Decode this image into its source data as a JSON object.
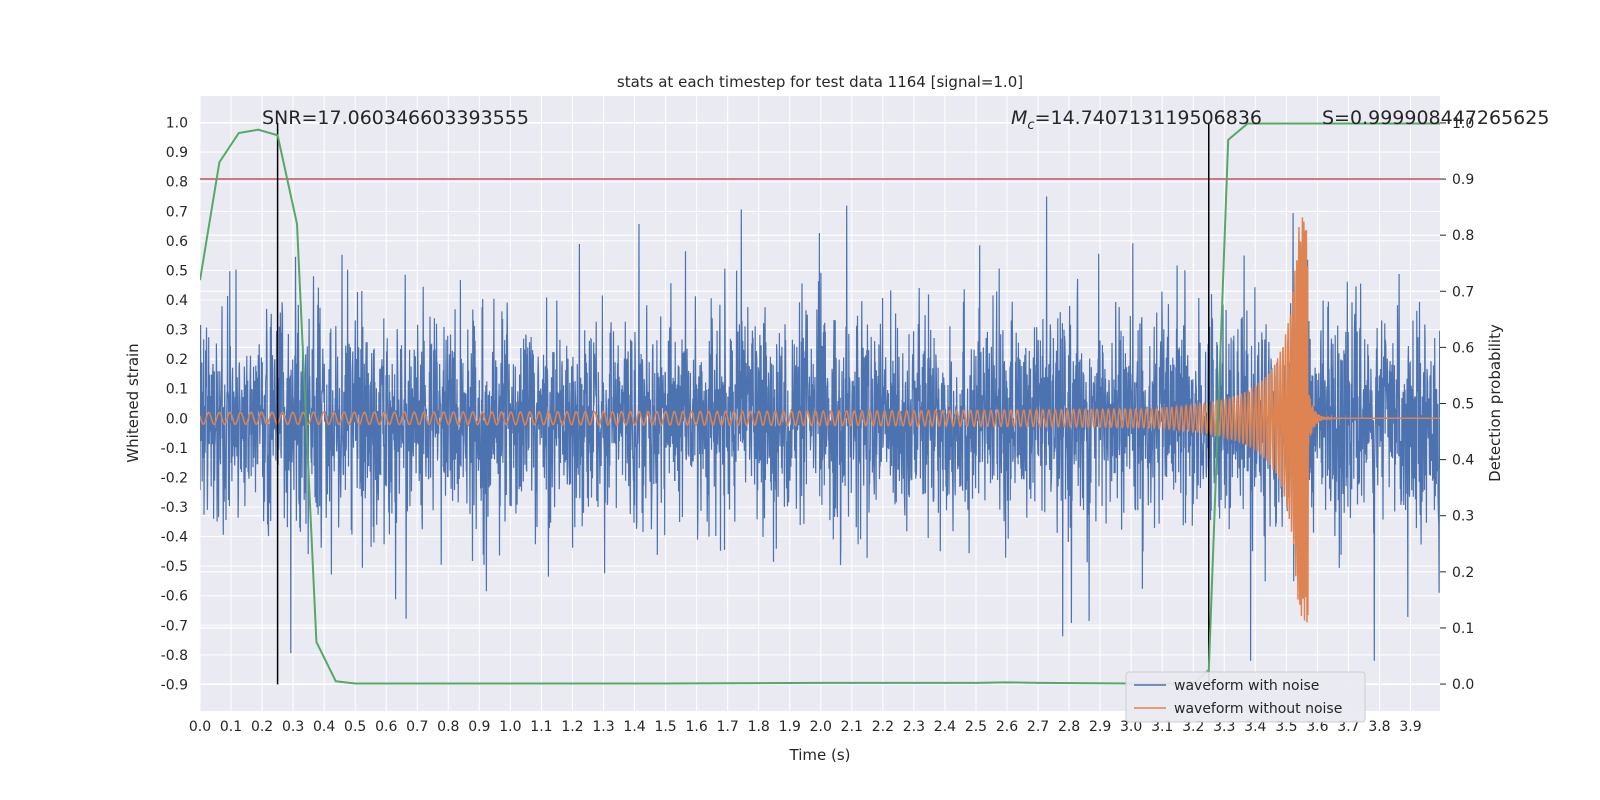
{
  "chart_data": {
    "type": "line",
    "title": "stats at each timestep for test data 1164 [signal=1.0]",
    "xlabel": "Time (s)",
    "ylabel": "Whitened strain",
    "ylabel_right": "Detection probability",
    "xlim": [
      0.0,
      3.995
    ],
    "ylim": [
      -0.99,
      1.09
    ],
    "ylim_right": [
      -0.048,
      1.048
    ],
    "x_ticks": [
      "0.0",
      "0.1",
      "0.2",
      "0.3",
      "0.4",
      "0.5",
      "0.6",
      "0.7",
      "0.8",
      "0.9",
      "1.0",
      "1.1",
      "1.2",
      "1.3",
      "1.4",
      "1.5",
      "1.6",
      "1.7",
      "1.8",
      "1.9",
      "2.0",
      "2.1",
      "2.2",
      "2.3",
      "2.4",
      "2.5",
      "2.6",
      "2.7",
      "2.8",
      "2.9",
      "3.0",
      "3.1",
      "3.2",
      "3.3",
      "3.4",
      "3.5",
      "3.6",
      "3.7",
      "3.8",
      "3.9"
    ],
    "y_ticks": [
      "1.0",
      "0.9",
      "0.8",
      "0.7",
      "0.6",
      "0.5",
      "0.4",
      "0.3",
      "0.2",
      "0.1",
      "0.0",
      "-0.1",
      "-0.2",
      "-0.3",
      "-0.4",
      "-0.5",
      "-0.6",
      "-0.7",
      "-0.8",
      "-0.9"
    ],
    "y_ticks_right": [
      "1.0",
      "0.9",
      "0.8",
      "0.7",
      "0.6",
      "0.5",
      "0.4",
      "0.3",
      "0.2",
      "0.1",
      "0.0"
    ],
    "annotations": {
      "snr": "SNR=17.060346603393555",
      "mc_symbol": "M",
      "mc_sub": "c",
      "mc_value": "=14.740713119506836",
      "s": "S=0.999908447265625"
    },
    "threshold_line": {
      "axis": "right",
      "value": 0.9
    },
    "vertical_markers": [
      0.25,
      3.25
    ],
    "vertical_marker_range": [
      -0.9,
      1.0
    ],
    "detection_probability": {
      "x": [
        0.0,
        0.0625,
        0.125,
        0.1875,
        0.25,
        0.3125,
        0.375,
        0.4375,
        0.5,
        0.6,
        0.8,
        1.0,
        1.5,
        2.0,
        2.5,
        2.6,
        2.7,
        3.0,
        3.1,
        3.2,
        3.25,
        3.3125,
        3.375,
        3.5,
        3.7,
        3.9,
        3.995
      ],
      "y": [
        0.72,
        0.93,
        0.982,
        0.988,
        0.978,
        0.82,
        0.075,
        0.005,
        0.001,
        0.001,
        0.001,
        0.001,
        0.001,
        0.002,
        0.002,
        0.003,
        0.002,
        0.001,
        0.001,
        0.001,
        0.025,
        0.97,
        0.999,
        0.999,
        0.999,
        0.999,
        0.999
      ]
    },
    "noisy_waveform": {
      "amplitude_typical": 0.35,
      "amplitude_max": 1.0,
      "x_range": [
        0.0,
        3.995
      ]
    },
    "clean_waveform": {
      "amplitude_start": 0.02,
      "merger_time": 3.57,
      "peak_amplitude": 0.69,
      "min_amplitude": -0.66
    },
    "legend": {
      "placement": "lower-right",
      "entries": [
        "waveform with noise",
        "waveform without noise"
      ]
    },
    "series": [
      {
        "name": "waveform with noise",
        "color": "#4c72b0"
      },
      {
        "name": "waveform without noise",
        "color": "#dd8452"
      },
      {
        "color": "#55a868"
      },
      {
        "color": "#c44e52"
      }
    ],
    "grid": true,
    "background": "#eaeaf2"
  }
}
